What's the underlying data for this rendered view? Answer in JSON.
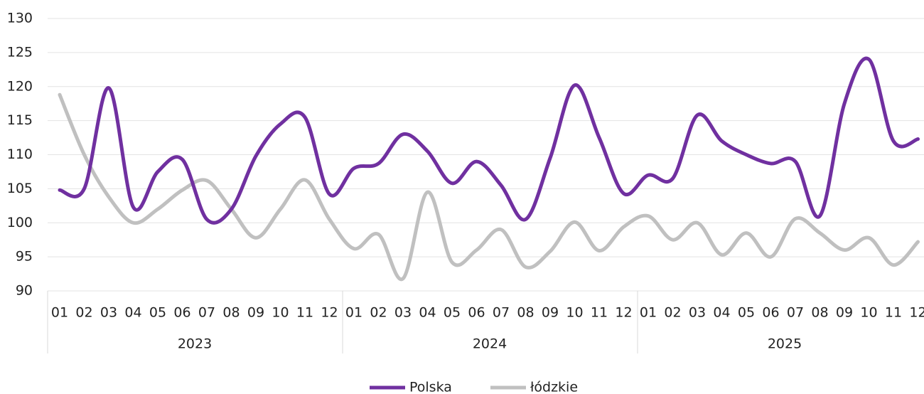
{
  "chart_data": {
    "type": "line",
    "categories": [
      "01",
      "02",
      "03",
      "04",
      "05",
      "06",
      "07",
      "08",
      "09",
      "10",
      "11",
      "12",
      "01",
      "02",
      "03",
      "04",
      "05",
      "06",
      "07",
      "08",
      "09",
      "10",
      "11",
      "12",
      "01",
      "02",
      "03",
      "04",
      "05",
      "06",
      "07",
      "08",
      "09",
      "10",
      "11",
      "12"
    ],
    "category_groups": [
      "2023",
      "2024",
      "2025"
    ],
    "series": [
      {
        "name": "Polska",
        "color": "#7030a0",
        "values": [
          104.8,
          105,
          119.8,
          102.3,
          107.5,
          109.3,
          100.5,
          102,
          109.8,
          114.5,
          115.5,
          104.2,
          108,
          108.7,
          113,
          110.5,
          105.8,
          109,
          105.5,
          100.5,
          109.5,
          120.2,
          112.5,
          104.3,
          107,
          106.5,
          115.8,
          112,
          110,
          108.7,
          109,
          101,
          117.5,
          124,
          112,
          112.3
        ]
      },
      {
        "name": "łódzkie",
        "color": "#c0c0c0",
        "values": [
          118.8,
          110,
          103.8,
          100,
          102,
          104.8,
          106.2,
          102,
          97.8,
          102,
          106.3,
          100.5,
          96.2,
          98.3,
          91.8,
          104.5,
          94.2,
          96,
          99,
          93.5,
          95.8,
          100.1,
          95.9,
          99.4,
          101,
          97.5,
          100,
          95.3,
          98.5,
          95,
          100.6,
          98.5,
          96,
          97.8,
          93.8,
          97.2
        ]
      }
    ],
    "ylim": [
      90,
      130
    ],
    "yticks": [
      90,
      95,
      100,
      105,
      110,
      115,
      120,
      125,
      130
    ],
    "grid": true,
    "legend": "bottom"
  }
}
